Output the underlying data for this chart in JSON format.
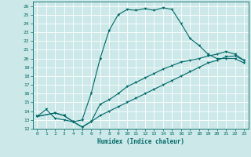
{
  "xlabel": "Humidex (Indice chaleur)",
  "xlim": [
    -0.5,
    23.5
  ],
  "ylim": [
    12,
    26.5
  ],
  "xticks": [
    0,
    1,
    2,
    3,
    4,
    5,
    6,
    7,
    8,
    9,
    10,
    11,
    12,
    13,
    14,
    15,
    16,
    17,
    18,
    19,
    20,
    21,
    22,
    23
  ],
  "yticks": [
    12,
    13,
    14,
    15,
    16,
    17,
    18,
    19,
    20,
    21,
    22,
    23,
    24,
    25,
    26
  ],
  "bg_color": "#cce8e8",
  "grid_color": "#ffffff",
  "line_color": "#006868",
  "lines": [
    {
      "x": [
        0,
        1,
        2,
        3,
        4,
        5,
        6,
        7,
        8,
        9,
        10,
        11,
        12,
        13,
        14,
        15,
        16,
        17,
        18,
        19,
        20,
        21,
        22,
        23
      ],
      "y": [
        13.4,
        14.2,
        13.2,
        13.0,
        12.8,
        13.0,
        16.0,
        20.0,
        23.2,
        25.0,
        25.6,
        25.5,
        25.7,
        25.5,
        25.8,
        25.6,
        24.0,
        22.3,
        21.5,
        20.5,
        20.0,
        20.0,
        20.0,
        19.5
      ],
      "marker": "v"
    },
    {
      "x": [
        0,
        2,
        3,
        4,
        5,
        6,
        7,
        8,
        9,
        10,
        11,
        12,
        13,
        14,
        15,
        16,
        17,
        18,
        19,
        20,
        21,
        22,
        23
      ],
      "y": [
        13.4,
        13.8,
        13.5,
        12.8,
        12.2,
        12.8,
        14.8,
        15.3,
        16.0,
        16.8,
        17.3,
        17.8,
        18.3,
        18.8,
        19.2,
        19.6,
        19.8,
        20.0,
        20.3,
        20.5,
        20.8,
        20.5,
        19.8
      ],
      "marker": "v"
    },
    {
      "x": [
        0,
        2,
        3,
        4,
        5,
        6,
        7,
        8,
        9,
        10,
        11,
        12,
        13,
        14,
        15,
        16,
        17,
        18,
        19,
        20,
        21,
        22,
        23
      ],
      "y": [
        13.4,
        13.8,
        13.5,
        12.8,
        12.2,
        12.8,
        13.5,
        14.0,
        14.5,
        15.0,
        15.5,
        16.0,
        16.5,
        17.0,
        17.5,
        18.0,
        18.5,
        19.0,
        19.5,
        19.8,
        20.2,
        20.3,
        19.8
      ],
      "marker": "v"
    }
  ]
}
